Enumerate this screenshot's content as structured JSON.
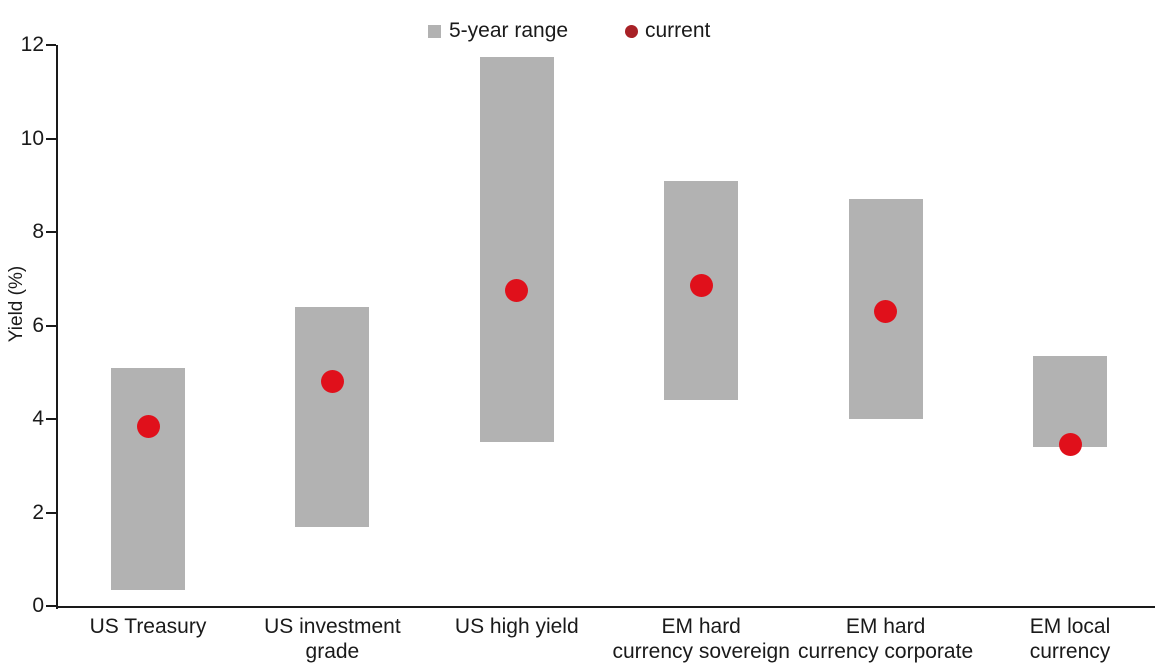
{
  "legend": {
    "items": [
      {
        "label": "5-year range",
        "marker": "square",
        "color": "#b2b2b2"
      },
      {
        "label": "current",
        "marker": "dot",
        "color": "#a82126"
      }
    ]
  },
  "chart_data": {
    "type": "range-bar-with-points",
    "title": "",
    "ylabel": "Yield (%)",
    "xlabel": "",
    "ylim": [
      0,
      12
    ],
    "yticks": [
      0,
      2,
      4,
      6,
      8,
      10,
      12
    ],
    "grid": false,
    "legend_position": "top-center",
    "bar_color": "#b2b2b2",
    "point_color": "#e0101b",
    "axis_color": "#1a1a1a",
    "text_color": "#1a1a1a",
    "categories": [
      "US Treasury",
      "US investment grade",
      "US high yield",
      "EM hard currency sovereign",
      "EM hard currency corporate",
      "EM local currency"
    ],
    "category_label_lines": [
      [
        "US Treasury"
      ],
      [
        "US investment",
        "grade"
      ],
      [
        "US high yield"
      ],
      [
        "EM hard",
        "currency sovereign"
      ],
      [
        "EM hard",
        "currency corporate"
      ],
      [
        "EM local",
        "currency"
      ]
    ],
    "series": [
      {
        "name": "5-year range",
        "type": "range",
        "low": [
          0.35,
          1.7,
          3.5,
          4.4,
          4.0,
          3.4
        ],
        "high": [
          5.1,
          6.4,
          11.75,
          9.1,
          8.7,
          5.35
        ]
      },
      {
        "name": "current",
        "type": "point",
        "values": [
          3.85,
          4.8,
          6.75,
          6.85,
          6.3,
          3.45
        ]
      }
    ]
  }
}
